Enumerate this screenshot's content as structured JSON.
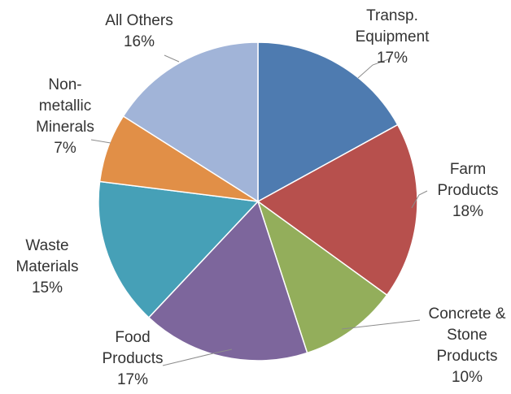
{
  "chart_data": {
    "type": "pie",
    "start_angle_deg": 0,
    "direction": "clockwise",
    "slices": [
      {
        "lines": [
          "Transp.",
          "Equipment"
        ],
        "pct_label": "17%",
        "value": 17,
        "color": "#4E7BB0"
      },
      {
        "lines": [
          "Farm",
          "Products"
        ],
        "pct_label": "18%",
        "value": 18,
        "color": "#B7504D"
      },
      {
        "lines": [
          "Concrete &",
          "Stone",
          "Products"
        ],
        "pct_label": "10%",
        "value": 10,
        "color": "#93AE5B"
      },
      {
        "lines": [
          "Food",
          "Products"
        ],
        "pct_label": "17%",
        "value": 17,
        "color": "#7D669C"
      },
      {
        "lines": [
          "Waste",
          "Materials"
        ],
        "pct_label": "15%",
        "value": 15,
        "color": "#46A0B7"
      },
      {
        "lines": [
          "Non-",
          "metallic",
          "Minerals"
        ],
        "pct_label": "7%",
        "value": 7,
        "color": "#E18F47"
      },
      {
        "lines": [
          "All Others"
        ],
        "pct_label": "16%",
        "value": 16,
        "color": "#A1B4D8"
      }
    ]
  }
}
